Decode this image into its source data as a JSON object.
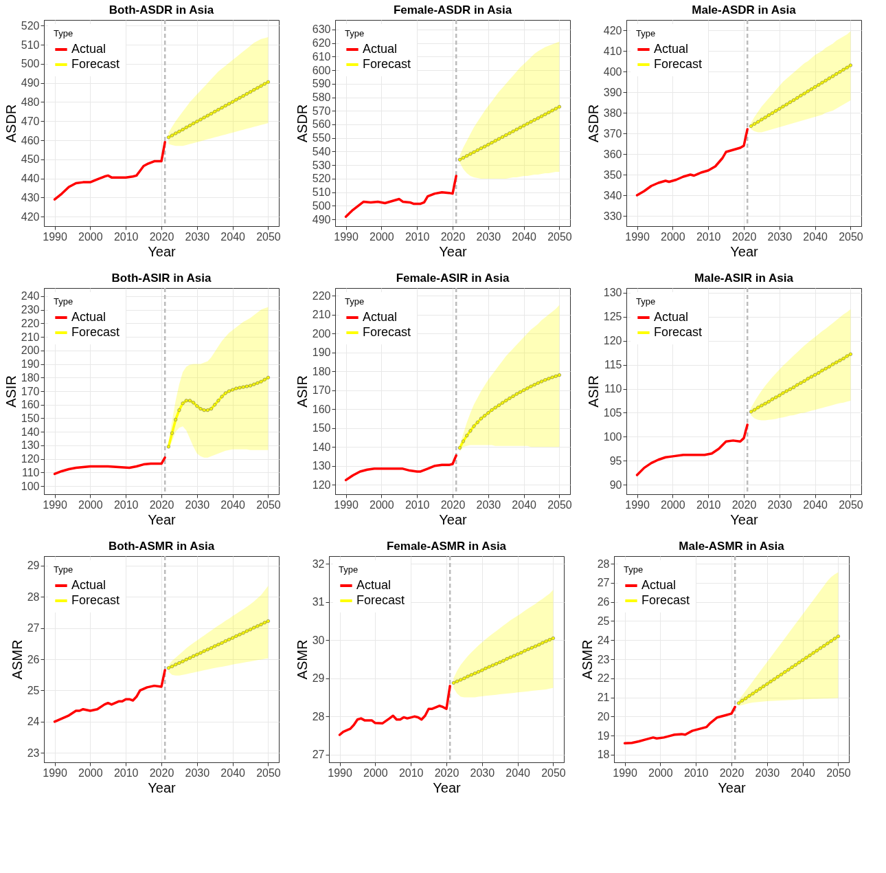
{
  "chart_data": [
    {
      "type": "line",
      "title": "Both-ASDR in Asia",
      "xlabel": "Year",
      "ylabel": "ASDR",
      "legend_title": "Type",
      "legend": "top left",
      "grid": true,
      "line_style": "solid",
      "xlim": [
        1987,
        2053
      ],
      "xticks": [
        1990,
        2000,
        2010,
        2020,
        2030,
        2040,
        2050
      ],
      "ylim": [
        415,
        523
      ],
      "yticks": [
        420,
        430,
        440,
        450,
        460,
        470,
        480,
        490,
        500,
        510,
        520
      ],
      "ref_lines": [
        {
          "axis": "x",
          "value": 2021,
          "color": "#bbbbbb",
          "line_style": "dashed"
        }
      ],
      "series": [
        {
          "name": "Actual",
          "color": "#ff0000",
          "marker": "none",
          "x": [
            1990,
            1992,
            1994,
            1996,
            1998,
            2000,
            2002,
            2004,
            2005,
            2006,
            2008,
            2010,
            2012,
            2013,
            2014,
            2015,
            2016,
            2018,
            2020,
            2021
          ],
          "values": [
            429,
            432,
            435.5,
            437.5,
            438,
            438,
            439.5,
            441,
            441.5,
            440.5,
            440.5,
            440.5,
            441,
            441.5,
            444,
            446.5,
            447.5,
            449,
            449,
            459
          ]
        },
        {
          "name": "Forecast",
          "color": "#ffff00",
          "marker": "circle",
          "x": [
            2022,
            2023,
            2024,
            2025,
            2026,
            2027,
            2028,
            2029,
            2030,
            2031,
            2032,
            2033,
            2034,
            2035,
            2036,
            2037,
            2038,
            2039,
            2040,
            2041,
            2042,
            2043,
            2044,
            2045,
            2046,
            2047,
            2048,
            2049,
            2050
          ],
          "values": [
            461.5,
            462.5,
            463.6,
            464.6,
            465.6,
            466.7,
            467.7,
            468.8,
            469.8,
            470.8,
            471.9,
            472.9,
            473.9,
            475.0,
            476.0,
            477.0,
            478.1,
            479.1,
            480.1,
            481.2,
            482.2,
            483.2,
            484.3,
            485.3,
            486.4,
            487.4,
            488.4,
            489.5,
            490.5
          ],
          "lower": [
            458,
            457.5,
            457,
            457,
            457,
            457.5,
            458,
            458.5,
            459,
            459.5,
            460,
            460.5,
            461,
            461.5,
            462,
            462.5,
            463,
            463.5,
            464,
            464.5,
            465,
            465.5,
            466,
            466.5,
            467,
            467.5,
            468,
            468.5,
            469
          ],
          "upper": [
            464,
            467,
            470,
            472.5,
            475,
            477.5,
            480,
            482,
            484,
            486,
            488,
            490,
            492,
            494,
            496,
            497.5,
            499,
            500.5,
            502,
            503.5,
            505,
            506.5,
            508,
            509.5,
            511,
            512,
            513,
            513.5,
            514
          ]
        }
      ]
    },
    {
      "type": "line",
      "title": "Female-ASDR in Asia",
      "xlabel": "Year",
      "ylabel": "ASDR",
      "legend_title": "Type",
      "legend": "top left",
      "grid": true,
      "line_style": "solid",
      "xlim": [
        1987,
        2053
      ],
      "xticks": [
        1990,
        2000,
        2010,
        2020,
        2030,
        2040,
        2050
      ],
      "ylim": [
        485,
        637
      ],
      "yticks": [
        490,
        500,
        510,
        520,
        530,
        540,
        550,
        560,
        570,
        580,
        590,
        600,
        610,
        620,
        630
      ],
      "ref_lines": [
        {
          "axis": "x",
          "value": 2021,
          "color": "#bbbbbb",
          "line_style": "dashed"
        }
      ],
      "series": [
        {
          "name": "Actual",
          "color": "#ff0000",
          "marker": "none",
          "x": [
            1990,
            1992,
            1994,
            1995,
            1997,
            1999,
            2001,
            2003,
            2005,
            2006,
            2008,
            2009,
            2011,
            2012,
            2013,
            2015,
            2017,
            2019,
            2020,
            2021
          ],
          "values": [
            492,
            497,
            501,
            503,
            502.5,
            503,
            502,
            503.5,
            505,
            503,
            502.5,
            501.5,
            501.5,
            502.5,
            507,
            509,
            510,
            509.5,
            509,
            522
          ]
        },
        {
          "name": "Forecast",
          "color": "#ffff00",
          "marker": "circle",
          "x": [
            2022,
            2023,
            2024,
            2025,
            2026,
            2027,
            2028,
            2029,
            2030,
            2031,
            2032,
            2033,
            2034,
            2035,
            2036,
            2037,
            2038,
            2039,
            2040,
            2041,
            2042,
            2043,
            2044,
            2045,
            2046,
            2047,
            2048,
            2049,
            2050
          ],
          "values": [
            534,
            535.4,
            536.8,
            538.2,
            539.6,
            541.0,
            542.4,
            543.7,
            545.1,
            546.5,
            547.9,
            549.3,
            550.7,
            552.1,
            553.5,
            554.9,
            556.3,
            557.7,
            559.1,
            560.5,
            561.9,
            563.3,
            564.6,
            566.0,
            567.4,
            568.8,
            570.2,
            571.6,
            573
          ],
          "lower": [
            532,
            527,
            524,
            522,
            521,
            520.5,
            520,
            520,
            520,
            520,
            520,
            520,
            520,
            520,
            520.5,
            521,
            521,
            521.5,
            522,
            522,
            522.5,
            523,
            523,
            523.5,
            524,
            524,
            524.5,
            525,
            525
          ],
          "upper": [
            537,
            543,
            548,
            553,
            558,
            562,
            566,
            570,
            573.5,
            577,
            580.5,
            584,
            587,
            590,
            593,
            596,
            599,
            602,
            604.5,
            607,
            609.5,
            612,
            614,
            615.5,
            617,
            618,
            619,
            620,
            621
          ]
        }
      ]
    },
    {
      "type": "line",
      "title": "Male-ASDR in Asia",
      "xlabel": "Year",
      "ylabel": "ASDR",
      "legend_title": "Type",
      "legend": "top left",
      "grid": true,
      "line_style": "solid",
      "xlim": [
        1987,
        2053
      ],
      "xticks": [
        1990,
        2000,
        2010,
        2020,
        2030,
        2040,
        2050
      ],
      "ylim": [
        325,
        425
      ],
      "yticks": [
        330,
        340,
        350,
        360,
        370,
        380,
        390,
        400,
        410,
        420
      ],
      "ref_lines": [
        {
          "axis": "x",
          "value": 2021,
          "color": "#bbbbbb",
          "line_style": "dashed"
        }
      ],
      "series": [
        {
          "name": "Actual",
          "color": "#ff0000",
          "marker": "none",
          "x": [
            1990,
            1992,
            1994,
            1996,
            1998,
            1999,
            2001,
            2003,
            2005,
            2006,
            2008,
            2010,
            2012,
            2014,
            2015,
            2017,
            2019,
            2020,
            2021
          ],
          "values": [
            340,
            342,
            344.5,
            346,
            347,
            346.5,
            347.5,
            349,
            350,
            349.5,
            351,
            352,
            354,
            358,
            361,
            362,
            363,
            364,
            372
          ]
        },
        {
          "name": "Forecast",
          "color": "#ffff00",
          "marker": "circle",
          "x": [
            2022,
            2023,
            2024,
            2025,
            2026,
            2027,
            2028,
            2029,
            2030,
            2031,
            2032,
            2033,
            2034,
            2035,
            2036,
            2037,
            2038,
            2039,
            2040,
            2041,
            2042,
            2043,
            2044,
            2045,
            2046,
            2047,
            2048,
            2049,
            2050
          ],
          "values": [
            373.5,
            374.6,
            375.6,
            376.7,
            377.7,
            378.8,
            379.8,
            380.9,
            381.9,
            383.0,
            384.0,
            385.1,
            386.1,
            387.2,
            388.3,
            389.3,
            390.4,
            391.4,
            392.5,
            393.5,
            394.6,
            395.6,
            396.7,
            397.7,
            398.8,
            399.8,
            400.9,
            401.9,
            403
          ],
          "lower": [
            372,
            371,
            370.5,
            370.5,
            371,
            371.5,
            372,
            372.5,
            373,
            373.5,
            374,
            374.5,
            375,
            375.5,
            376,
            376.5,
            377,
            377.5,
            378,
            378.5,
            379,
            380,
            380.5,
            381,
            382,
            383,
            384,
            385,
            386
          ],
          "upper": [
            375,
            378,
            380.5,
            383,
            385,
            387,
            389,
            391,
            393,
            395,
            396.5,
            398,
            399.5,
            401,
            402.5,
            404,
            405,
            406.5,
            408,
            409,
            410,
            411.5,
            412.5,
            413.5,
            415,
            416,
            417,
            418,
            419.5
          ]
        }
      ]
    },
    {
      "type": "line",
      "title": "Both-ASIR in Asia",
      "xlabel": "Year",
      "ylabel": "ASIR",
      "legend_title": "Type",
      "legend": "top left",
      "grid": true,
      "line_style": "solid",
      "xlim": [
        1987,
        2053
      ],
      "xticks": [
        1990,
        2000,
        2010,
        2020,
        2030,
        2040,
        2050
      ],
      "ylim": [
        94,
        246
      ],
      "yticks": [
        100,
        110,
        120,
        130,
        140,
        150,
        160,
        170,
        180,
        190,
        200,
        210,
        220,
        230,
        240
      ],
      "ref_lines": [
        {
          "axis": "x",
          "value": 2021,
          "color": "#bbbbbb",
          "line_style": "dashed"
        }
      ],
      "series": [
        {
          "name": "Actual",
          "color": "#ff0000",
          "marker": "none",
          "x": [
            1990,
            1992,
            1994,
            1996,
            2000,
            2005,
            2008,
            2011,
            2013,
            2015,
            2017,
            2020,
            2021
          ],
          "values": [
            109,
            111,
            112.5,
            113.5,
            114.5,
            114.5,
            114,
            113.5,
            114.5,
            116,
            116.5,
            116.5,
            121
          ]
        },
        {
          "name": "Forecast",
          "color": "#ffff00",
          "marker": "circle",
          "x": [
            2022,
            2023,
            2024,
            2025,
            2026,
            2027,
            2028,
            2029,
            2030,
            2031,
            2032,
            2033,
            2034,
            2035,
            2036,
            2037,
            2038,
            2039,
            2040,
            2041,
            2042,
            2043,
            2044,
            2045,
            2046,
            2047,
            2048,
            2049,
            2050
          ],
          "values": [
            129,
            139,
            149,
            156,
            161,
            163,
            163,
            161.5,
            159,
            157,
            156,
            156,
            157,
            160,
            163,
            166,
            168.5,
            170,
            171,
            172,
            172.5,
            173,
            173.5,
            174,
            175,
            176,
            177,
            178.5,
            180
          ],
          "lower": [
            127,
            133,
            140,
            143,
            144,
            141,
            135,
            129,
            124,
            122,
            121,
            121,
            122,
            123,
            124,
            125,
            126,
            126.5,
            127,
            127,
            127,
            127,
            127,
            126.5,
            126.5,
            126.5,
            126.5,
            126.5,
            126.5
          ],
          "upper": [
            133,
            148,
            163,
            175,
            184,
            188,
            189.5,
            190,
            190,
            190,
            191,
            192,
            195,
            199,
            203,
            207,
            210,
            213,
            215,
            217,
            219,
            221,
            222.5,
            224,
            226,
            228,
            230,
            231,
            232
          ]
        }
      ]
    },
    {
      "type": "line",
      "title": "Female-ASIR in Asia",
      "xlabel": "Year",
      "ylabel": "ASIR",
      "legend_title": "Type",
      "legend": "top left",
      "grid": true,
      "line_style": "solid",
      "xlim": [
        1987,
        2053
      ],
      "xticks": [
        1990,
        2000,
        2010,
        2020,
        2030,
        2040,
        2050
      ],
      "ylim": [
        115,
        224
      ],
      "yticks": [
        120,
        130,
        140,
        150,
        160,
        170,
        180,
        190,
        200,
        210,
        220
      ],
      "ref_lines": [
        {
          "axis": "x",
          "value": 2021,
          "color": "#bbbbbb",
          "line_style": "dashed"
        }
      ],
      "series": [
        {
          "name": "Actual",
          "color": "#ff0000",
          "marker": "none",
          "x": [
            1990,
            1992,
            1994,
            1996,
            1998,
            2001,
            2004,
            2006,
            2008,
            2010,
            2011,
            2013,
            2015,
            2017,
            2019,
            2020,
            2021
          ],
          "values": [
            122.5,
            125,
            127,
            128,
            128.5,
            128.5,
            128.5,
            128.5,
            127.5,
            127,
            127,
            128.5,
            130,
            130.5,
            130.5,
            131,
            135.5
          ]
        },
        {
          "name": "Forecast",
          "color": "#ffff00",
          "marker": "circle",
          "x": [
            2022,
            2023,
            2024,
            2025,
            2026,
            2027,
            2028,
            2029,
            2030,
            2031,
            2032,
            2033,
            2034,
            2035,
            2036,
            2037,
            2038,
            2039,
            2040,
            2041,
            2042,
            2043,
            2044,
            2045,
            2046,
            2047,
            2048,
            2049,
            2050
          ],
          "values": [
            139.5,
            143,
            146,
            148.5,
            151,
            153,
            155,
            156.5,
            158,
            159.5,
            160.8,
            162,
            163.3,
            164.5,
            165.7,
            166.8,
            168,
            169,
            170,
            171,
            172,
            172.9,
            173.8,
            174.6,
            175.4,
            176.1,
            176.8,
            177.4,
            178
          ],
          "lower": [
            137.5,
            140,
            140.5,
            141,
            141,
            141,
            141,
            141,
            141,
            141,
            140.5,
            140.5,
            140.5,
            140.5,
            140.5,
            140.5,
            140.5,
            140.5,
            140.5,
            140.5,
            140,
            140,
            140,
            140,
            140,
            140,
            140,
            140,
            140
          ],
          "upper": [
            141,
            147,
            153,
            158,
            162.5,
            166,
            169.5,
            172.5,
            175.5,
            178,
            180.5,
            183,
            185.5,
            188,
            190,
            192,
            194,
            196,
            198,
            200,
            202,
            203.5,
            205,
            207,
            208.5,
            210,
            211.5,
            213,
            215
          ]
        }
      ]
    },
    {
      "type": "line",
      "title": "Male-ASIR in Asia",
      "xlabel": "Year",
      "ylabel": "ASIR",
      "legend_title": "Type",
      "legend": "top left",
      "grid": true,
      "line_style": "solid",
      "xlim": [
        1987,
        2053
      ],
      "xticks": [
        1990,
        2000,
        2010,
        2020,
        2030,
        2040,
        2050
      ],
      "ylim": [
        88,
        131
      ],
      "yticks": [
        90,
        95,
        100,
        105,
        110,
        115,
        120,
        125,
        130
      ],
      "ref_lines": [
        {
          "axis": "x",
          "value": 2021,
          "color": "#bbbbbb",
          "line_style": "dashed"
        }
      ],
      "series": [
        {
          "name": "Actual",
          "color": "#ff0000",
          "marker": "none",
          "x": [
            1990,
            1992,
            1994,
            1996,
            1998,
            2000,
            2003,
            2006,
            2009,
            2011,
            2013,
            2015,
            2017,
            2019,
            2020,
            2021
          ],
          "values": [
            92,
            93.5,
            94.5,
            95.2,
            95.7,
            95.9,
            96.2,
            96.2,
            96.2,
            96.5,
            97.5,
            99,
            99.2,
            99,
            99.7,
            102.5
          ]
        },
        {
          "name": "Forecast",
          "color": "#ffff00",
          "marker": "circle",
          "x": [
            2022,
            2023,
            2024,
            2025,
            2026,
            2027,
            2028,
            2029,
            2030,
            2031,
            2032,
            2033,
            2034,
            2035,
            2036,
            2037,
            2038,
            2039,
            2040,
            2041,
            2042,
            2043,
            2044,
            2045,
            2046,
            2047,
            2048,
            2049,
            2050
          ],
          "values": [
            105.2,
            105.6,
            106.1,
            106.5,
            106.9,
            107.3,
            107.8,
            108.2,
            108.6,
            109.1,
            109.5,
            109.9,
            110.3,
            110.8,
            111.2,
            111.6,
            112.1,
            112.5,
            112.9,
            113.3,
            113.8,
            114.2,
            114.6,
            115.1,
            115.5,
            115.9,
            116.3,
            116.8,
            117.2
          ],
          "lower": [
            104.5,
            103.8,
            103.5,
            103.4,
            103.4,
            103.5,
            103.6,
            103.7,
            103.9,
            104,
            104.2,
            104.4,
            104.5,
            104.7,
            104.9,
            105,
            105.2,
            105.4,
            105.6,
            105.8,
            106,
            106.2,
            106.4,
            106.6,
            106.8,
            107,
            107.1,
            107.3,
            107.5
          ],
          "upper": [
            106,
            107.3,
            108.5,
            109.6,
            110.6,
            111.5,
            112.4,
            113.2,
            114,
            114.8,
            115.5,
            116.2,
            116.9,
            117.6,
            118.3,
            119,
            119.6,
            120.2,
            120.8,
            121.4,
            122,
            122.5,
            123.1,
            123.7,
            124.3,
            124.9,
            125.5,
            126,
            126.6
          ]
        }
      ]
    },
    {
      "type": "line",
      "title": "Both-ASMR in Asia",
      "xlabel": "Year",
      "ylabel": "ASMR",
      "legend_title": "Type",
      "legend": "top left",
      "grid": true,
      "line_style": "solid",
      "xlim": [
        1987,
        2053
      ],
      "xticks": [
        1990,
        2000,
        2010,
        2020,
        2030,
        2040,
        2050
      ],
      "ylim": [
        22.7,
        29.3
      ],
      "yticks": [
        23,
        24,
        25,
        26,
        27,
        28,
        29
      ],
      "ref_lines": [
        {
          "axis": "x",
          "value": 2021,
          "color": "#bbbbbb",
          "line_style": "dashed"
        }
      ],
      "series": [
        {
          "name": "Actual",
          "color": "#ff0000",
          "marker": "none",
          "x": [
            1990,
            1992,
            1994,
            1996,
            1997,
            1998,
            2000,
            2002,
            2004,
            2005,
            2006,
            2008,
            2009,
            2010,
            2011,
            2012,
            2013,
            2014,
            2016,
            2018,
            2020,
            2021
          ],
          "values": [
            24,
            24.1,
            24.2,
            24.35,
            24.35,
            24.4,
            24.35,
            24.4,
            24.55,
            24.6,
            24.55,
            24.65,
            24.65,
            24.72,
            24.72,
            24.68,
            24.8,
            25,
            25.1,
            25.15,
            25.12,
            25.65
          ]
        },
        {
          "name": "Forecast",
          "color": "#ffff00",
          "marker": "circle",
          "x": [
            2022,
            2023,
            2024,
            2025,
            2026,
            2027,
            2028,
            2029,
            2030,
            2031,
            2032,
            2033,
            2034,
            2035,
            2036,
            2037,
            2038,
            2039,
            2040,
            2041,
            2042,
            2043,
            2044,
            2045,
            2046,
            2047,
            2048,
            2049,
            2050
          ],
          "values": [
            25.72,
            25.77,
            25.83,
            25.88,
            25.93,
            25.99,
            26.04,
            26.1,
            26.15,
            26.2,
            26.26,
            26.31,
            26.36,
            26.42,
            26.47,
            26.52,
            26.58,
            26.63,
            26.68,
            26.74,
            26.79,
            26.84,
            26.9,
            26.95,
            27.01,
            27.06,
            27.11,
            27.17,
            27.22
          ],
          "lower": [
            25.6,
            25.5,
            25.48,
            25.48,
            25.5,
            25.52,
            25.55,
            25.57,
            25.6,
            25.62,
            25.65,
            25.67,
            25.7,
            25.72,
            25.74,
            25.76,
            25.78,
            25.8,
            25.83,
            25.85,
            25.87,
            25.89,
            25.91,
            25.93,
            25.95,
            25.97,
            25.99,
            26.01,
            26.03
          ],
          "upper": [
            25.8,
            25.95,
            26.05,
            26.15,
            26.25,
            26.35,
            26.44,
            26.52,
            26.6,
            26.68,
            26.76,
            26.84,
            26.92,
            27,
            27.08,
            27.15,
            27.23,
            27.3,
            27.38,
            27.45,
            27.53,
            27.6,
            27.68,
            27.76,
            27.85,
            27.95,
            28.05,
            28.2,
            28.35
          ]
        }
      ]
    },
    {
      "type": "line",
      "title": "Female-ASMR in Asia",
      "xlabel": "Year",
      "ylabel": "ASMR",
      "legend_title": "Type",
      "legend": "top left",
      "grid": true,
      "line_style": "solid",
      "xlim": [
        1987,
        2053
      ],
      "xticks": [
        1990,
        2000,
        2010,
        2020,
        2030,
        2040,
        2050
      ],
      "ylim": [
        26.8,
        32.2
      ],
      "yticks": [
        27,
        28,
        29,
        30,
        31,
        32
      ],
      "ref_lines": [
        {
          "axis": "x",
          "value": 2021,
          "color": "#bbbbbb",
          "line_style": "dashed"
        }
      ],
      "series": [
        {
          "name": "Actual",
          "color": "#ff0000",
          "marker": "none",
          "x": [
            1990,
            1991,
            1993,
            1994,
            1995,
            1996,
            1997,
            1999,
            2000,
            2002,
            2004,
            2005,
            2006,
            2007,
            2008,
            2009,
            2011,
            2012,
            2013,
            2014,
            2015,
            2016,
            2018,
            2019,
            2020,
            2021
          ],
          "values": [
            27.52,
            27.6,
            27.68,
            27.78,
            27.92,
            27.95,
            27.9,
            27.9,
            27.83,
            27.82,
            27.95,
            28.02,
            27.92,
            27.92,
            27.98,
            27.95,
            28,
            27.98,
            27.92,
            28.02,
            28.2,
            28.2,
            28.28,
            28.25,
            28.2,
            28.8
          ]
        },
        {
          "name": "Forecast",
          "color": "#ffff00",
          "marker": "circle",
          "x": [
            2022,
            2023,
            2024,
            2025,
            2026,
            2027,
            2028,
            2029,
            2030,
            2031,
            2032,
            2033,
            2034,
            2035,
            2036,
            2037,
            2038,
            2039,
            2040,
            2041,
            2042,
            2043,
            2044,
            2045,
            2046,
            2047,
            2048,
            2049,
            2050
          ],
          "values": [
            28.88,
            28.92,
            28.96,
            29.0,
            29.05,
            29.09,
            29.13,
            29.17,
            29.21,
            29.26,
            29.3,
            29.34,
            29.38,
            29.42,
            29.46,
            29.51,
            29.55,
            29.59,
            29.63,
            29.67,
            29.72,
            29.76,
            29.8,
            29.84,
            29.88,
            29.93,
            29.97,
            30.01,
            30.05
          ],
          "lower": [
            28.75,
            28.6,
            28.52,
            28.5,
            28.5,
            28.5,
            28.5,
            28.52,
            28.53,
            28.54,
            28.55,
            28.56,
            28.57,
            28.58,
            28.59,
            28.6,
            28.61,
            28.62,
            28.63,
            28.64,
            28.65,
            28.66,
            28.67,
            28.68,
            28.69,
            28.7,
            28.71,
            28.73,
            28.75
          ],
          "upper": [
            29,
            29.2,
            29.35,
            29.47,
            29.58,
            29.68,
            29.77,
            29.86,
            29.94,
            30.02,
            30.1,
            30.17,
            30.24,
            30.31,
            30.38,
            30.45,
            30.52,
            30.58,
            30.64,
            30.7,
            30.77,
            30.83,
            30.89,
            30.95,
            31.02,
            31.08,
            31.15,
            31.22,
            31.32
          ]
        }
      ]
    },
    {
      "type": "line",
      "title": "Male-ASMR in Asia",
      "xlabel": "Year",
      "ylabel": "ASMR",
      "legend_title": "Type",
      "legend": "top left",
      "grid": true,
      "line_style": "solid",
      "xlim": [
        1987,
        2053
      ],
      "xticks": [
        1990,
        2000,
        2010,
        2020,
        2030,
        2040,
        2050
      ],
      "ylim": [
        17.6,
        28.4
      ],
      "yticks": [
        18,
        19,
        20,
        21,
        22,
        23,
        24,
        25,
        26,
        27,
        28
      ],
      "ref_lines": [
        {
          "axis": "x",
          "value": 2021,
          "color": "#bbbbbb",
          "line_style": "dashed"
        }
      ],
      "series": [
        {
          "name": "Actual",
          "color": "#ff0000",
          "marker": "none",
          "x": [
            1990,
            1992,
            1994,
            1996,
            1998,
            1999,
            2001,
            2003,
            2004,
            2006,
            2007,
            2009,
            2011,
            2013,
            2014,
            2016,
            2018,
            2020,
            2021
          ],
          "values": [
            18.6,
            18.62,
            18.7,
            18.8,
            18.9,
            18.85,
            18.9,
            19.0,
            19.05,
            19.08,
            19.05,
            19.25,
            19.35,
            19.45,
            19.65,
            19.95,
            20.05,
            20.15,
            20.5
          ]
        },
        {
          "name": "Forecast",
          "color": "#ffff00",
          "marker": "circle",
          "x": [
            2022,
            2023,
            2024,
            2025,
            2026,
            2027,
            2028,
            2029,
            2030,
            2031,
            2032,
            2033,
            2034,
            2035,
            2036,
            2037,
            2038,
            2039,
            2040,
            2041,
            2042,
            2043,
            2044,
            2045,
            2046,
            2047,
            2048,
            2049,
            2050
          ],
          "values": [
            20.7,
            20.83,
            20.95,
            21.08,
            21.2,
            21.33,
            21.45,
            21.58,
            21.7,
            21.83,
            21.95,
            22.08,
            22.2,
            22.33,
            22.45,
            22.58,
            22.7,
            22.83,
            22.95,
            23.08,
            23.2,
            23.33,
            23.45,
            23.58,
            23.7,
            23.83,
            23.95,
            24.08,
            24.2
          ],
          "lower": [
            20.55,
            20.6,
            20.65,
            20.7,
            20.73,
            20.75,
            20.77,
            20.79,
            20.8,
            20.81,
            20.82,
            20.83,
            20.84,
            20.85,
            20.86,
            20.87,
            20.88,
            20.89,
            20.9,
            20.9,
            20.91,
            20.92,
            20.92,
            20.93,
            20.94,
            20.94,
            20.95,
            20.96,
            20.97
          ],
          "upper": [
            20.85,
            21.1,
            21.35,
            21.6,
            21.85,
            22.1,
            22.35,
            22.6,
            22.85,
            23.1,
            23.35,
            23.6,
            23.85,
            24.1,
            24.35,
            24.6,
            24.85,
            25.1,
            25.35,
            25.6,
            25.85,
            26.1,
            26.35,
            26.6,
            26.85,
            27.1,
            27.3,
            27.45,
            27.55
          ]
        }
      ]
    }
  ]
}
